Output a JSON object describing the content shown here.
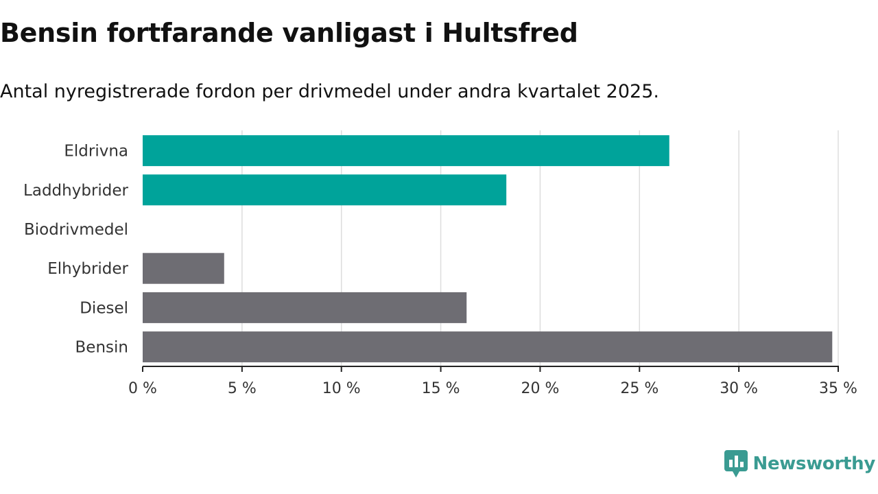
{
  "title": "Bensin fortfarande vanligast i Hultsfred",
  "subtitle": "Antal nyregistrerade fordon per drivmedel under andra kvartalet 2025.",
  "brand": {
    "name": "Newsworthy",
    "color": "#3a9b92"
  },
  "colors": {
    "highlight": "#00a39a",
    "other": "#6e6d73",
    "grid": "#dddddd",
    "axis": "#222222",
    "text": "#333333"
  },
  "chart_data": {
    "type": "bar",
    "orientation": "horizontal",
    "categories": [
      "Eldrivna",
      "Laddhybrider",
      "Biodrivmedel",
      "Elhybrider",
      "Diesel",
      "Bensin"
    ],
    "values": [
      26.5,
      18.3,
      0,
      4.1,
      16.3,
      34.7
    ],
    "highlight": [
      true,
      true,
      false,
      false,
      false,
      false
    ],
    "xlim": [
      0,
      35
    ],
    "ticks": [
      0,
      5,
      10,
      15,
      20,
      25,
      30,
      35
    ],
    "tick_labels": [
      "0 %",
      "5 %",
      "10 %",
      "15 %",
      "20 %",
      "25 %",
      "30 %",
      "35 %"
    ],
    "grid": true,
    "legend": "none"
  }
}
